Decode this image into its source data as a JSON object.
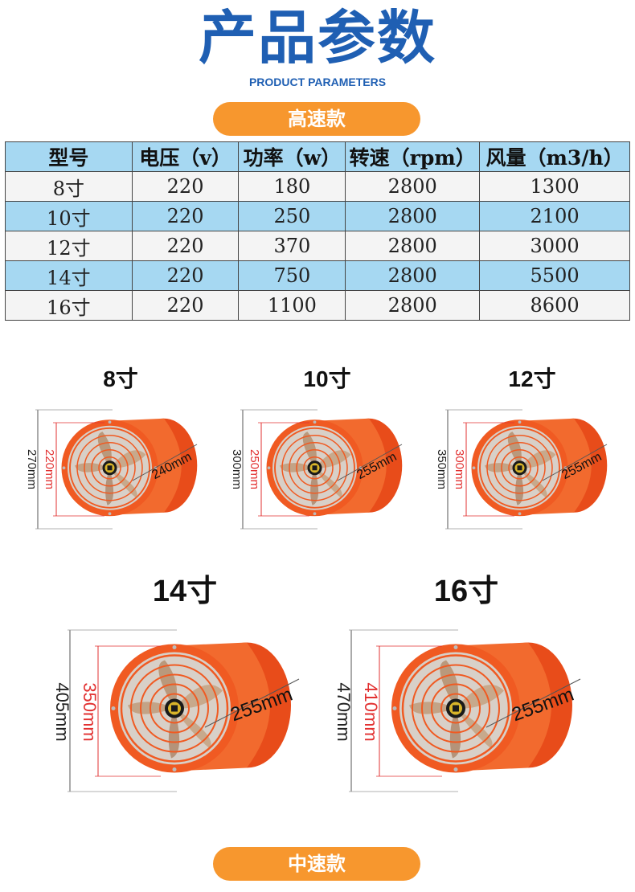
{
  "header": {
    "title": "产品参数",
    "subtitle": "PRODUCT PARAMETERS"
  },
  "section_high": {
    "label": "高速款"
  },
  "section_mid": {
    "label": "中速款"
  },
  "table": {
    "columns": [
      "型号",
      "电压（v）",
      "功率（w）",
      "转速（rpm）",
      "风量（m3/h）"
    ],
    "rows": [
      [
        "8寸",
        "220",
        "180",
        "2800",
        "1300"
      ],
      [
        "10寸",
        "220",
        "250",
        "2800",
        "2100"
      ],
      [
        "12寸",
        "220",
        "370",
        "2800",
        "3000"
      ],
      [
        "14寸",
        "220",
        "750",
        "2800",
        "5500"
      ],
      [
        "16寸",
        "220",
        "1100",
        "2800",
        "8600"
      ]
    ]
  },
  "fans": [
    {
      "label": "8寸",
      "outer": "270mm",
      "inner": "220mm",
      "depth": "240mm"
    },
    {
      "label": "10寸",
      "outer": "300mm",
      "inner": "250mm",
      "depth": "255mm"
    },
    {
      "label": "12寸",
      "outer": "350mm",
      "inner": "300mm",
      "depth": "255mm"
    },
    {
      "label": "14寸",
      "outer": "405mm",
      "inner": "350mm",
      "depth": "255mm"
    },
    {
      "label": "16寸",
      "outer": "470mm",
      "inner": "410mm",
      "depth": "255mm"
    }
  ],
  "colors": {
    "title_blue": "#1f5fb3",
    "pill_orange": "#f7972e",
    "row_blue": "#a6d8f2",
    "fan_orange": "#f05a22",
    "dimension_red": "#e23030"
  }
}
